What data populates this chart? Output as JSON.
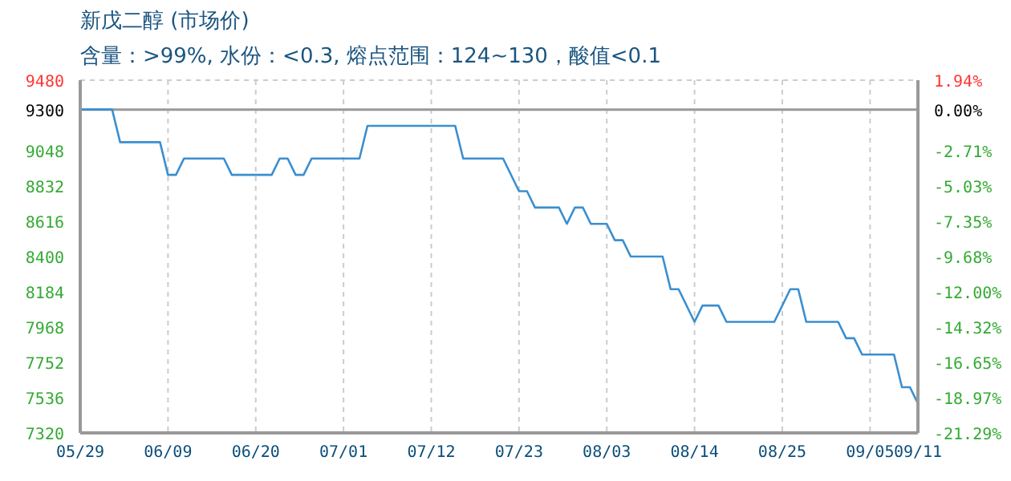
{
  "chart_data": {
    "type": "line",
    "title": "新戊二醇 (市场价)",
    "subtitle": "含量：>99%, 水份：<0.3, 熔点范围：124~130，酸值<0.1",
    "x": [
      "--05-29",
      "--06-02",
      "--06-03",
      "--06-08",
      "--06-09",
      "--06-10",
      "--06-11",
      "--06-16",
      "--06-17",
      "--06-22",
      "--06-23",
      "--06-24",
      "--06-25",
      "--06-26",
      "--06-27",
      "--07-03",
      "--07-04",
      "--07-15",
      "--07-16",
      "--07-21",
      "--07-23",
      "--07-24",
      "--07-25",
      "--07-28",
      "--07-29",
      "--07-30",
      "--07-31",
      "--08-01",
      "--08-03",
      "--08-04",
      "--08-05",
      "--08-06",
      "--08-10",
      "--08-11",
      "--08-12",
      "--08-14",
      "--08-15",
      "--08-17",
      "--08-18",
      "--08-24",
      "--08-26",
      "--08-27",
      "--08-28",
      "--09-01",
      "--09-02",
      "--09-03",
      "--09-04",
      "--09-08",
      "--09-09",
      "--09-10",
      "--09-11"
    ],
    "series": [
      {
        "color": "#3a8fd0",
        "values": [
          9300,
          9300,
          9100,
          9100,
          8900,
          8900,
          9000,
          9000,
          8900,
          8900,
          9000,
          9000,
          8900,
          8900,
          9000,
          9000,
          9200,
          9200,
          9000,
          9000,
          8800,
          8800,
          8700,
          8700,
          8600,
          8700,
          8700,
          8600,
          8600,
          8500,
          8500,
          8400,
          8400,
          8200,
          8200,
          8000,
          8100,
          8100,
          8000,
          8000,
          8200,
          8200,
          8000,
          8000,
          7900,
          7900,
          7800,
          7800,
          7600,
          7600,
          7500
        ]
      }
    ],
    "xlim": [
      "--05-29",
      "--09-11"
    ],
    "xticks": [
      {
        "value": "--05-29",
        "label": "05/29"
      },
      {
        "value": "--06-09",
        "label": "06/09"
      },
      {
        "value": "--06-20",
        "label": "06/20"
      },
      {
        "value": "--07-01",
        "label": "07/01"
      },
      {
        "value": "--07-12",
        "label": "07/12"
      },
      {
        "value": "--07-23",
        "label": "07/23"
      },
      {
        "value": "--08-03",
        "label": "08/03"
      },
      {
        "value": "--08-14",
        "label": "08/14"
      },
      {
        "value": "--08-25",
        "label": "08/25"
      },
      {
        "value": "--09-05",
        "label": "09/05"
      },
      {
        "value": "--09-11",
        "label": "09/11"
      }
    ],
    "ylim": [
      7320,
      9480
    ],
    "yticks": [
      7320,
      7536,
      7752,
      7968,
      8184,
      8400,
      8616,
      8832,
      9048,
      9300,
      9480
    ],
    "y2lim": [
      -21.29,
      1.94
    ],
    "y2ticks": [
      {
        "value": -21.29,
        "label": "-21.29%"
      },
      {
        "value": -18.97,
        "label": "-18.97%"
      },
      {
        "value": -16.65,
        "label": "-16.65%"
      },
      {
        "value": -14.32,
        "label": "-14.32%"
      },
      {
        "value": -12.0,
        "label": "-12.00%"
      },
      {
        "value": -9.68,
        "label": "-9.68%"
      },
      {
        "value": -7.35,
        "label": "-7.35%"
      },
      {
        "value": -5.03,
        "label": "-5.03%"
      },
      {
        "value": -2.71,
        "label": "-2.71%"
      },
      {
        "value": 0,
        "label": "0.00%"
      },
      {
        "value": 1.94,
        "label": "1.94%"
      }
    ],
    "ref_lines": [
      {
        "axis": "y",
        "value": 9300,
        "color": "#999999",
        "line_style": "solid"
      }
    ],
    "grid": true,
    "legend": false,
    "marker": "none",
    "line_style": "solid"
  }
}
